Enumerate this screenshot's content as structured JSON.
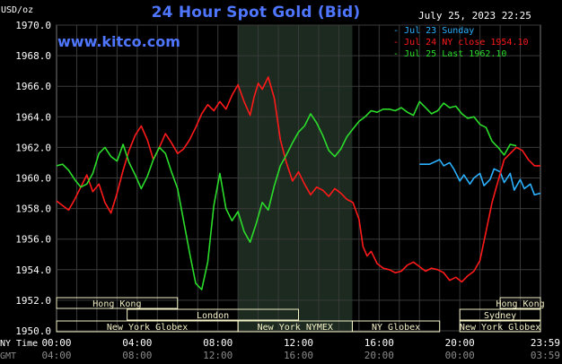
{
  "title": "24 Hour Spot Gold (Bid)",
  "website": "www.kitco.com",
  "timestamp": "July 25, 2023 22:25",
  "colors": {
    "background": "#000000",
    "title": "#4f76ff",
    "grid": "#3a3a3a",
    "night_band": "#1c2a1f",
    "jul23": "#2ab0ff",
    "jul24": "#ff1a1a",
    "jul25": "#2bdc2b",
    "market_box": "#f5f2c8"
  },
  "chart_data": {
    "type": "line",
    "title": "24 Hour Spot Gold (Bid)",
    "ylabel": "USD/oz",
    "ylim": [
      1950.0,
      1970.0
    ],
    "yticks": [
      "1970.0",
      "1968.0",
      "1966.0",
      "1964.0",
      "1962.0",
      "1960.0",
      "1958.0",
      "1956.0",
      "1954.0",
      "1952.0",
      "1950.0"
    ],
    "xlim": [
      0,
      24
    ],
    "x_axis_rows": [
      {
        "name": "NY Time",
        "ticks": [
          "00:00",
          "04:00",
          "08:00",
          "12:00",
          "16:00",
          "20:00",
          "23:59"
        ]
      },
      {
        "name": "GMT",
        "ticks": [
          "04:00",
          "08:00",
          "12:00",
          "16:00",
          "20:00",
          "00:00",
          "03:59"
        ]
      }
    ],
    "grid": true,
    "legend_position": "top-right",
    "shaded_band": {
      "start": 9.0,
      "end": 14.67
    },
    "series": [
      {
        "name": "Jul 23 Sunday",
        "color": "#2ab0ff",
        "x": [
          18.0,
          18.5,
          19.0,
          19.2,
          19.5,
          19.7,
          20.0,
          20.2,
          20.5,
          20.7,
          21.0,
          21.2,
          21.5,
          21.7,
          22.0,
          22.2,
          22.5,
          22.7,
          23.0,
          23.2,
          23.5,
          23.7,
          24.0
        ],
        "y": [
          1960.9,
          1960.9,
          1961.2,
          1960.8,
          1961.0,
          1960.6,
          1959.8,
          1960.2,
          1959.6,
          1960.0,
          1960.3,
          1959.5,
          1959.9,
          1960.6,
          1960.4,
          1959.7,
          1960.3,
          1959.2,
          1959.9,
          1959.3,
          1959.6,
          1958.9,
          1959.0
        ]
      },
      {
        "name": "Jul 24 NY close 1954.10",
        "color": "#ff1a1a",
        "x": [
          0,
          0.3,
          0.6,
          0.9,
          1.2,
          1.5,
          1.8,
          2.1,
          2.4,
          2.7,
          3.0,
          3.3,
          3.6,
          3.9,
          4.2,
          4.5,
          4.8,
          5.1,
          5.4,
          5.7,
          6.0,
          6.3,
          6.6,
          6.9,
          7.2,
          7.5,
          7.8,
          8.1,
          8.4,
          8.7,
          9.0,
          9.3,
          9.6,
          9.8,
          10.0,
          10.2,
          10.5,
          10.8,
          11.1,
          11.4,
          11.7,
          12.0,
          12.3,
          12.6,
          12.9,
          13.2,
          13.5,
          13.8,
          14.1,
          14.4,
          14.7,
          15.0,
          15.2,
          15.4,
          15.6,
          15.9,
          16.2,
          16.5,
          16.8,
          17.1,
          17.4,
          17.7,
          18.0,
          18.3,
          18.6,
          18.9,
          19.2,
          19.5,
          19.8,
          20.1,
          20.4,
          20.7,
          21.0,
          21.3,
          21.6,
          21.9,
          22.2,
          22.5,
          22.8,
          23.1,
          23.4,
          23.7,
          24.0
        ],
        "y": [
          1958.5,
          1958.2,
          1957.9,
          1958.6,
          1959.4,
          1960.2,
          1959.1,
          1959.6,
          1958.4,
          1957.7,
          1959.0,
          1960.5,
          1961.8,
          1962.8,
          1963.4,
          1962.5,
          1961.2,
          1962.0,
          1962.9,
          1962.3,
          1961.6,
          1961.9,
          1962.5,
          1963.3,
          1964.2,
          1964.8,
          1964.4,
          1965.0,
          1964.5,
          1965.4,
          1966.1,
          1965.0,
          1964.1,
          1965.3,
          1966.2,
          1965.8,
          1966.6,
          1965.2,
          1962.5,
          1961.0,
          1959.8,
          1960.4,
          1959.6,
          1958.9,
          1959.4,
          1959.2,
          1958.8,
          1959.3,
          1959.0,
          1958.6,
          1958.4,
          1957.3,
          1955.5,
          1954.9,
          1955.2,
          1954.4,
          1954.1,
          1954.0,
          1953.8,
          1953.9,
          1954.3,
          1954.5,
          1954.2,
          1953.9,
          1954.1,
          1954.0,
          1953.8,
          1953.3,
          1953.5,
          1953.2,
          1953.6,
          1953.9,
          1954.6,
          1956.5,
          1958.4,
          1959.8,
          1961.2,
          1961.6,
          1962.0,
          1961.8,
          1961.2,
          1960.8,
          1960.8
        ]
      },
      {
        "name": "Jul 25 Last 1962.10",
        "color": "#2bdc2b",
        "x": [
          0,
          0.3,
          0.6,
          0.9,
          1.2,
          1.5,
          1.8,
          2.1,
          2.4,
          2.7,
          3.0,
          3.3,
          3.6,
          3.9,
          4.2,
          4.5,
          4.8,
          5.1,
          5.4,
          5.7,
          6.0,
          6.3,
          6.6,
          6.9,
          7.2,
          7.5,
          7.8,
          8.1,
          8.4,
          8.7,
          9.0,
          9.3,
          9.6,
          9.9,
          10.2,
          10.5,
          10.8,
          11.1,
          11.4,
          11.7,
          12.0,
          12.3,
          12.6,
          12.9,
          13.2,
          13.5,
          13.8,
          14.1,
          14.4,
          14.7,
          15.0,
          15.3,
          15.6,
          15.9,
          16.2,
          16.5,
          16.8,
          17.1,
          17.4,
          17.7,
          18.0,
          18.3,
          18.6,
          18.9,
          19.2,
          19.5,
          19.8,
          20.1,
          20.4,
          20.7,
          21.0,
          21.3,
          21.6,
          21.9,
          22.2,
          22.5,
          22.8
        ],
        "y": [
          1960.8,
          1960.9,
          1960.5,
          1959.9,
          1959.4,
          1959.6,
          1960.3,
          1961.6,
          1962.0,
          1961.4,
          1961.1,
          1962.2,
          1961.0,
          1960.2,
          1959.3,
          1960.1,
          1961.2,
          1962.0,
          1961.6,
          1960.4,
          1959.3,
          1957.2,
          1955.1,
          1953.1,
          1952.7,
          1954.5,
          1958.2,
          1960.3,
          1958.0,
          1957.2,
          1957.8,
          1956.5,
          1955.8,
          1957.0,
          1958.4,
          1957.9,
          1959.5,
          1960.8,
          1961.5,
          1962.3,
          1963.0,
          1963.4,
          1964.2,
          1963.6,
          1962.8,
          1961.8,
          1961.4,
          1961.9,
          1962.7,
          1963.2,
          1963.7,
          1964.0,
          1964.4,
          1964.3,
          1964.5,
          1964.5,
          1964.4,
          1964.6,
          1964.3,
          1964.1,
          1965.0,
          1964.6,
          1964.2,
          1964.4,
          1964.9,
          1964.6,
          1964.7,
          1964.2,
          1963.9,
          1964.0,
          1963.5,
          1963.3,
          1962.4,
          1962.0,
          1961.5,
          1962.2,
          1962.1
        ]
      }
    ]
  },
  "markets": [
    {
      "name": "Hong Kong",
      "row": 0,
      "start": 0.0,
      "end": 6.0
    },
    {
      "name": "London",
      "row": 1,
      "start": 3.5,
      "end": 12.0
    },
    {
      "name": "New York Globex",
      "row": 2,
      "start": 0.0,
      "end": 9.0
    },
    {
      "name": "New York NYMEX",
      "row": 2,
      "start": 9.0,
      "end": 14.67
    },
    {
      "name": "NY Globex",
      "row": 2,
      "start": 14.67,
      "end": 19.0
    },
    {
      "name": "Hong Kong",
      "row": 0,
      "start": 22.0,
      "end": 24.0
    },
    {
      "name": "Sydney",
      "row": 1,
      "start": 20.0,
      "end": 24.0
    },
    {
      "name": "New York Globex",
      "row": 2,
      "start": 20.0,
      "end": 24.0
    }
  ]
}
